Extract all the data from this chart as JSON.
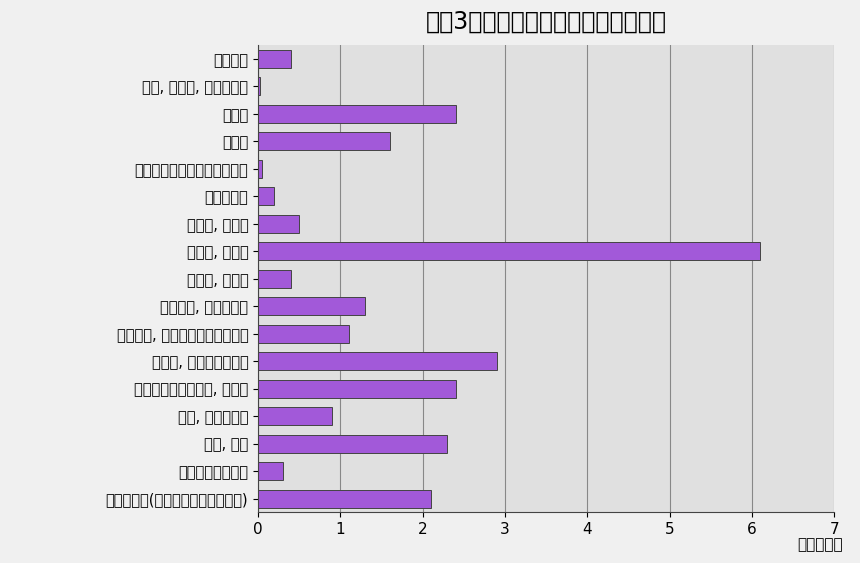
{
  "title": "令和3年の産業別事業所数（鳥取県）",
  "categories": [
    "農林漁業",
    "鉱業, 採石業, 砂利採取業",
    "建設業",
    "製造業",
    "電気･ガス･熱供給･水道業",
    "情報通信業",
    "運輸業, 郵便業",
    "卸売業, 小売業",
    "金融業, 保険業",
    "不動産業, 物品賃貸業",
    "学術研究, 専門･技術サービス業",
    "宿泊業, 飲食サービス業",
    "生活関連サービス業, 娯楽業",
    "教育, 学習支援業",
    "医療, 福祉",
    "複合サービス事業",
    "サービス業(他に分類されないもの)"
  ],
  "values": [
    0.4,
    0.03,
    2.4,
    1.6,
    0.05,
    0.2,
    0.5,
    6.1,
    0.4,
    1.3,
    1.1,
    2.9,
    2.4,
    0.9,
    2.3,
    0.3,
    2.1
  ],
  "bar_color": "#a259d9",
  "bar_edgecolor": "#444444",
  "plot_bg_color": "#e0e0e0",
  "fig_bg_color": "#f0f0f0",
  "xlabel": "（千か所）",
  "xlim": [
    0,
    7
  ],
  "xticks": [
    0,
    1,
    2,
    3,
    4,
    5,
    6,
    7
  ],
  "title_fontsize": 17,
  "label_fontsize": 10.5,
  "tick_fontsize": 11,
  "bar_height": 0.65
}
